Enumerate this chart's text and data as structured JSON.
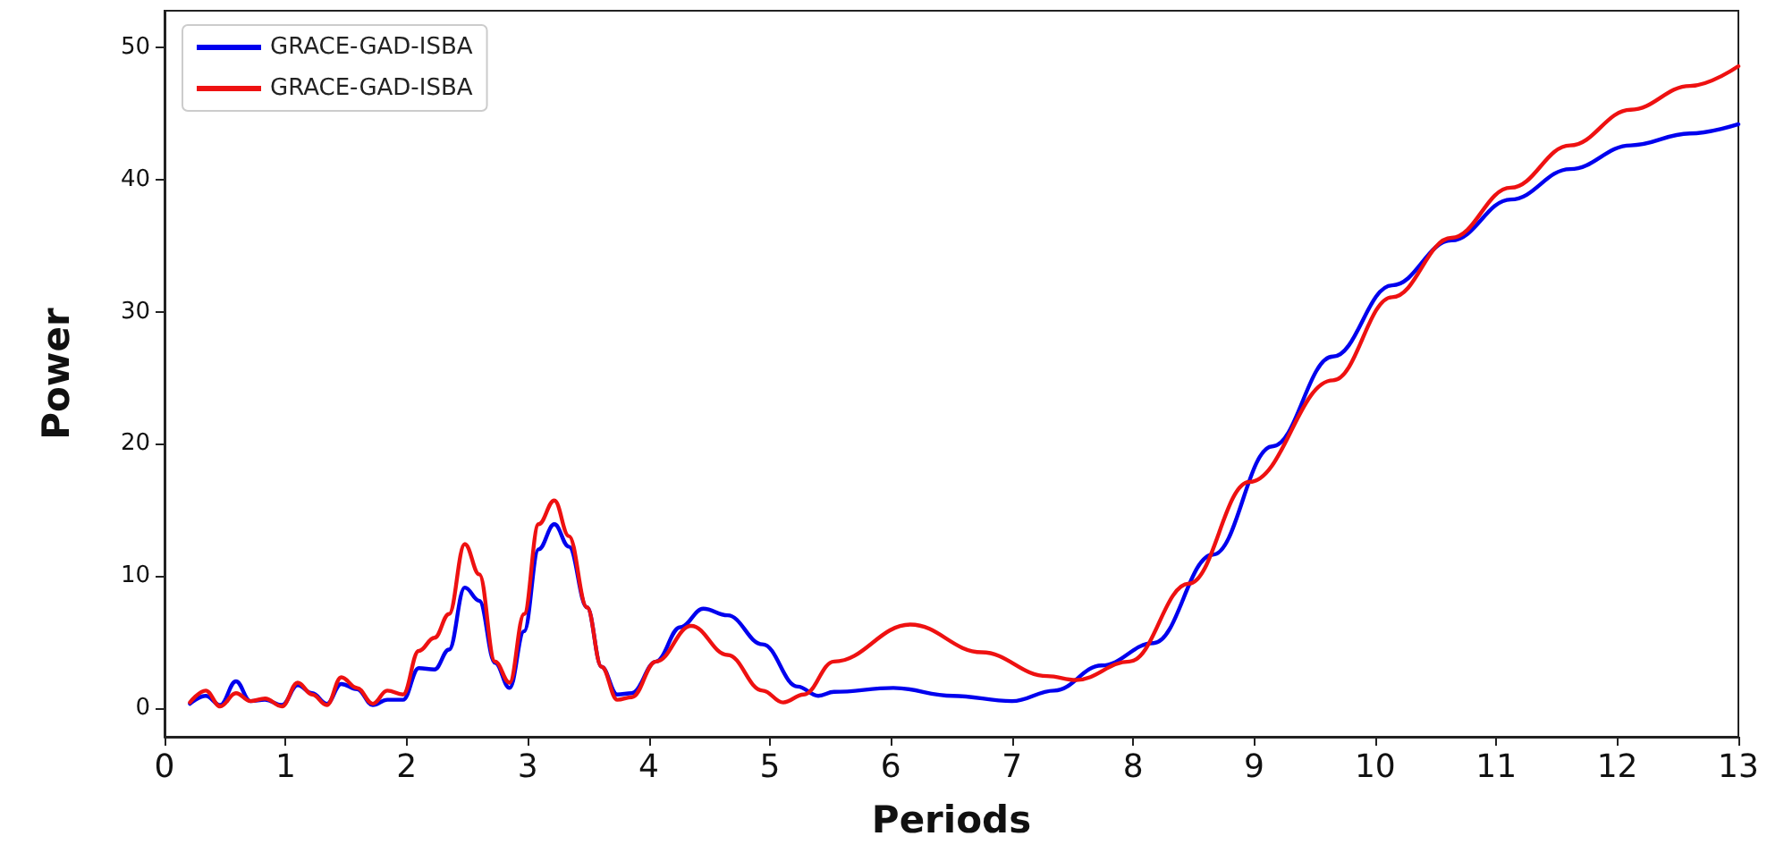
{
  "chart_data": {
    "type": "line",
    "xlabel": "Periods",
    "ylabel": "Power",
    "xlim": [
      0,
      13
    ],
    "xticks": [
      0,
      1,
      2,
      3,
      4,
      5,
      6,
      7,
      8,
      9,
      10,
      11,
      12,
      13
    ],
    "ylim": [
      -2.2,
      52.8
    ],
    "yticks": [
      0,
      10,
      20,
      30,
      40,
      50
    ],
    "grid": false,
    "legend": "top left",
    "marker": "none",
    "line_style": "solid",
    "series": [
      {
        "name": "GRACE-GAD-ISBA",
        "color": "#0000ee",
        "x": [
          0.21,
          0.34,
          0.46,
          0.59,
          0.71,
          0.83,
          0.97,
          1.1,
          1.22,
          1.34,
          1.46,
          1.59,
          1.72,
          1.84,
          1.97,
          2.1,
          2.23,
          2.35,
          2.48,
          2.6,
          2.73,
          2.85,
          2.97,
          3.09,
          3.22,
          3.34,
          3.49,
          3.61,
          3.74,
          3.86,
          4.06,
          4.26,
          4.45,
          4.65,
          4.94,
          5.23,
          5.4,
          5.53,
          6.02,
          6.51,
          7.0,
          7.35,
          7.74,
          8.17,
          8.66,
          9.15,
          9.65,
          10.14,
          10.63,
          11.12,
          11.61,
          12.11,
          12.6,
          13.0
        ],
        "values": [
          0.3,
          0.9,
          0.2,
          2.0,
          0.5,
          0.6,
          0.2,
          1.7,
          1.1,
          0.3,
          1.8,
          1.4,
          0.2,
          0.6,
          0.6,
          3.0,
          2.9,
          4.4,
          9.1,
          8.1,
          3.4,
          1.5,
          5.8,
          12.0,
          13.9,
          12.2,
          7.6,
          3.1,
          1.0,
          1.1,
          3.5,
          6.1,
          7.5,
          7.0,
          4.8,
          1.6,
          0.9,
          1.2,
          1.5,
          0.9,
          0.5,
          1.3,
          3.2,
          4.9,
          11.6,
          19.8,
          26.6,
          32.0,
          35.4,
          38.5,
          40.8,
          42.6,
          43.5,
          44.2
        ]
      },
      {
        "name": "GRACE-GAD-ISBA",
        "color": "#ee1111",
        "x": [
          0.21,
          0.34,
          0.46,
          0.59,
          0.71,
          0.83,
          0.97,
          1.1,
          1.22,
          1.34,
          1.46,
          1.59,
          1.72,
          1.84,
          1.97,
          2.1,
          2.23,
          2.35,
          2.48,
          2.6,
          2.73,
          2.85,
          2.97,
          3.09,
          3.22,
          3.34,
          3.49,
          3.61,
          3.74,
          3.86,
          4.06,
          4.35,
          4.65,
          4.94,
          5.11,
          5.28,
          5.53,
          6.16,
          6.75,
          7.29,
          7.53,
          7.97,
          8.46,
          8.96,
          9.65,
          10.14,
          10.63,
          11.12,
          11.61,
          12.11,
          12.6,
          13.0
        ],
        "values": [
          0.4,
          1.3,
          0.1,
          1.1,
          0.5,
          0.7,
          0.1,
          1.9,
          1.0,
          0.2,
          2.3,
          1.5,
          0.3,
          1.3,
          1.0,
          4.3,
          5.3,
          7.1,
          12.4,
          10.1,
          3.5,
          1.9,
          7.1,
          13.9,
          15.7,
          13.0,
          7.6,
          3.1,
          0.6,
          0.8,
          3.5,
          6.2,
          4.0,
          1.3,
          0.4,
          1.0,
          3.5,
          6.3,
          4.2,
          2.4,
          2.1,
          3.5,
          9.4,
          17.1,
          24.8,
          31.1,
          35.6,
          39.4,
          42.6,
          45.3,
          47.1,
          48.6
        ]
      }
    ]
  }
}
